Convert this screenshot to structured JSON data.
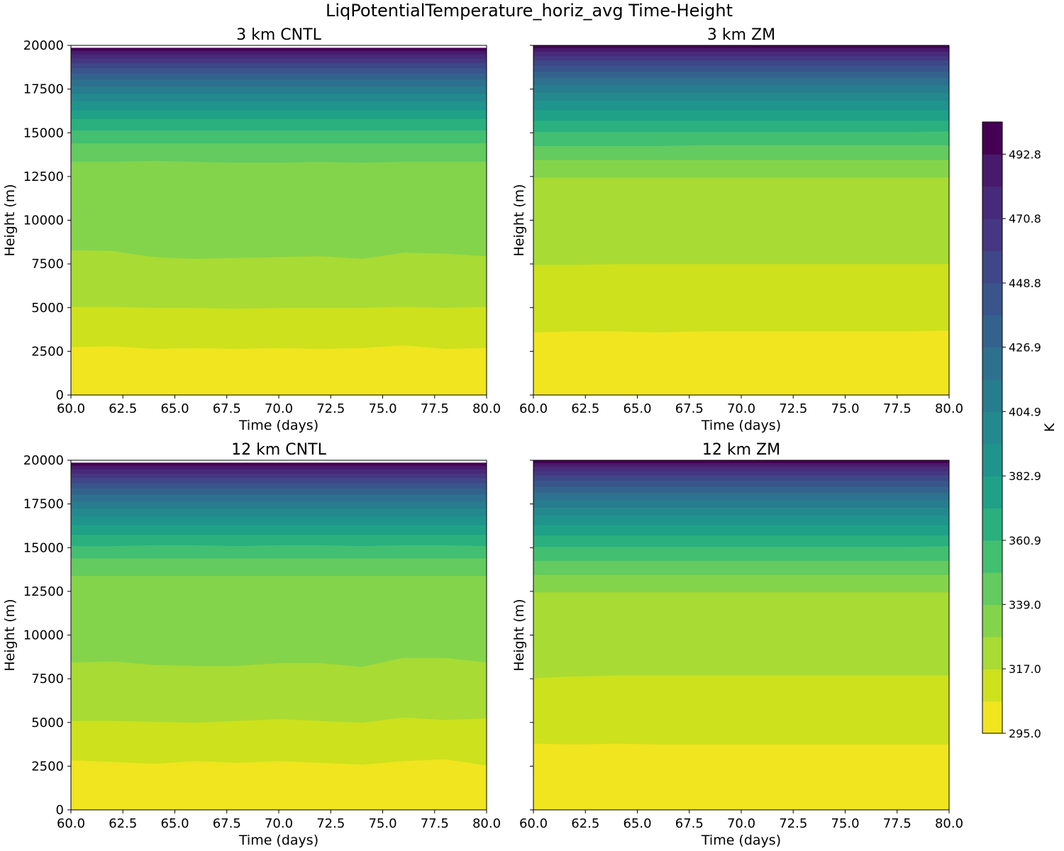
{
  "figure": {
    "title": "LiqPotentialTemperature_horiz_avg Time-Height"
  },
  "colorbar": {
    "label": "K",
    "range": [
      295.0,
      503.8
    ],
    "levels": 19,
    "tick_values": [
      295.0,
      317.0,
      339.0,
      360.9,
      382.9,
      404.9,
      426.9,
      448.8,
      470.8,
      492.8
    ],
    "tick_labels": [
      "295.0",
      "317.0",
      "339.0",
      "360.9",
      "382.9",
      "404.9",
      "426.9",
      "448.8",
      "470.8",
      "492.8"
    ],
    "colors": [
      "#f0e51f",
      "#cde11d",
      "#a8db34",
      "#84d44b",
      "#63cb5f",
      "#43bf71",
      "#2ab07f",
      "#1fa187",
      "#1f948c",
      "#23898e",
      "#277c8e",
      "#2d718e",
      "#33638d",
      "#39558c",
      "#3f4788",
      "#453781",
      "#472a7a",
      "#481a6c",
      "#440154"
    ]
  },
  "chart_data": [
    {
      "type": "heatmap",
      "title": "3 km CNTL",
      "xlabel": "Time (days)",
      "ylabel": "Height (m)",
      "xlim": [
        60,
        80
      ],
      "ylim": [
        0,
        20000
      ],
      "x_ticks": [
        "60.0",
        "62.5",
        "65.0",
        "67.5",
        "70.0",
        "72.5",
        "75.0",
        "77.5",
        "80.0"
      ],
      "y_ticks": [
        "0",
        "2500",
        "5000",
        "7500",
        "10000",
        "12500",
        "15000",
        "17500",
        "20000"
      ],
      "show_ytick_labels": true,
      "data_top_height": 19850,
      "band_x_days": [
        60,
        62,
        64,
        66,
        68,
        70,
        72,
        74,
        76,
        78,
        80
      ],
      "band_boundaries": [
        [
          2750,
          2800,
          2650,
          2700,
          2650,
          2700,
          2650,
          2700,
          2850,
          2650,
          2700
        ],
        [
          5050,
          5050,
          5000,
          5000,
          4950,
          5000,
          5000,
          5000,
          5050,
          5000,
          5050
        ],
        [
          8300,
          8250,
          7900,
          7800,
          7850,
          7900,
          7950,
          7800,
          8150,
          8100,
          7950
        ],
        [
          13350,
          13350,
          13400,
          13350,
          13300,
          13300,
          13350,
          13300,
          13350,
          13350,
          13350
        ],
        [
          14400,
          14400,
          14400,
          14400,
          14400,
          14400,
          14400,
          14400,
          14400,
          14400,
          14400
        ],
        [
          15150,
          15150,
          15150,
          15150,
          15150,
          15150,
          15150,
          15150,
          15150,
          15150,
          15150
        ],
        [
          15800,
          15800,
          15800,
          15800,
          15800,
          15800,
          15800,
          15800,
          15800,
          15800,
          15800
        ],
        [
          16300,
          16300,
          16300,
          16300,
          16300,
          16300,
          16300,
          16300,
          16300,
          16300,
          16300
        ],
        [
          16800,
          16800,
          16800,
          16800,
          16800,
          16800,
          16800,
          16800,
          16800,
          16800,
          16800
        ],
        [
          17250,
          17250,
          17250,
          17250,
          17250,
          17250,
          17250,
          17250,
          17250,
          17250,
          17250
        ],
        [
          17650,
          17650,
          17650,
          17650,
          17650,
          17650,
          17650,
          17650,
          17650,
          17650,
          17650
        ],
        [
          18050,
          18050,
          18050,
          18050,
          18050,
          18050,
          18050,
          18050,
          18050,
          18050,
          18050
        ],
        [
          18400,
          18400,
          18400,
          18400,
          18400,
          18400,
          18400,
          18400,
          18400,
          18400,
          18400
        ],
        [
          18700,
          18700,
          18700,
          18700,
          18700,
          18700,
          18700,
          18700,
          18700,
          18700,
          18700
        ],
        [
          19000,
          19000,
          19000,
          19000,
          19000,
          19000,
          19000,
          19000,
          19000,
          19000,
          19000
        ],
        [
          19250,
          19250,
          19250,
          19250,
          19250,
          19250,
          19250,
          19250,
          19250,
          19250,
          19250
        ],
        [
          19500,
          19500,
          19500,
          19500,
          19500,
          19500,
          19500,
          19500,
          19500,
          19500,
          19500
        ],
        [
          19700,
          19700,
          19700,
          19700,
          19700,
          19700,
          19700,
          19700,
          19700,
          19700,
          19700
        ]
      ]
    },
    {
      "type": "heatmap",
      "title": "3 km ZM",
      "xlabel": "Time (days)",
      "ylabel": "Height (m)",
      "xlim": [
        60,
        80
      ],
      "ylim": [
        0,
        20000
      ],
      "x_ticks": [
        "60.0",
        "62.5",
        "65.0",
        "67.5",
        "70.0",
        "72.5",
        "75.0",
        "77.5",
        "80.0"
      ],
      "y_ticks": [
        "0",
        "2500",
        "5000",
        "7500",
        "10000",
        "12500",
        "15000",
        "17500",
        "20000"
      ],
      "show_ytick_labels": false,
      "data_top_height": 20000,
      "band_x_days": [
        60,
        62,
        64,
        66,
        68,
        70,
        72,
        74,
        76,
        78,
        80
      ],
      "band_boundaries": [
        [
          3600,
          3650,
          3650,
          3600,
          3650,
          3650,
          3650,
          3650,
          3650,
          3650,
          3700
        ],
        [
          7450,
          7450,
          7500,
          7500,
          7500,
          7500,
          7500,
          7500,
          7500,
          7500,
          7500
        ],
        [
          12450,
          12450,
          12450,
          12450,
          12450,
          12450,
          12450,
          12450,
          12450,
          12450,
          12450
        ],
        [
          13450,
          13450,
          13450,
          13450,
          13450,
          13450,
          13450,
          13450,
          13450,
          13450,
          13450
        ],
        [
          14250,
          14250,
          14250,
          14250,
          14300,
          14300,
          14300,
          14300,
          14300,
          14300,
          14300
        ],
        [
          15050,
          15050,
          15050,
          15050,
          15050,
          15050,
          15050,
          15050,
          15050,
          15050,
          15100
        ],
        [
          15700,
          15700,
          15700,
          15700,
          15700,
          15700,
          15700,
          15700,
          15700,
          15700,
          15700
        ],
        [
          16300,
          16300,
          16300,
          16300,
          16300,
          16300,
          16300,
          16300,
          16300,
          16300,
          16300
        ],
        [
          16850,
          16850,
          16850,
          16850,
          16850,
          16850,
          16850,
          16850,
          16850,
          16850,
          16850
        ],
        [
          17300,
          17300,
          17300,
          17300,
          17300,
          17300,
          17300,
          17300,
          17300,
          17300,
          17300
        ],
        [
          17750,
          17750,
          17750,
          17750,
          17750,
          17750,
          17750,
          17750,
          17750,
          17750,
          17750
        ],
        [
          18150,
          18150,
          18150,
          18150,
          18150,
          18150,
          18150,
          18150,
          18150,
          18150,
          18150
        ],
        [
          18500,
          18500,
          18500,
          18500,
          18500,
          18500,
          18500,
          18500,
          18500,
          18500,
          18500
        ],
        [
          18850,
          18850,
          18850,
          18850,
          18850,
          18850,
          18850,
          18850,
          18850,
          18850,
          18850
        ],
        [
          19150,
          19150,
          19150,
          19150,
          19150,
          19150,
          19150,
          19150,
          19150,
          19150,
          19150
        ],
        [
          19400,
          19400,
          19400,
          19400,
          19400,
          19400,
          19400,
          19400,
          19400,
          19400,
          19400
        ],
        [
          19650,
          19650,
          19650,
          19650,
          19650,
          19650,
          19650,
          19650,
          19650,
          19650,
          19650
        ],
        [
          19850,
          19850,
          19850,
          19850,
          19850,
          19850,
          19850,
          19850,
          19850,
          19850,
          19850
        ]
      ]
    },
    {
      "type": "heatmap",
      "title": "12 km CNTL",
      "xlabel": "Time (days)",
      "ylabel": "Height (m)",
      "xlim": [
        60,
        80
      ],
      "ylim": [
        0,
        20000
      ],
      "x_ticks": [
        "60.0",
        "62.5",
        "65.0",
        "67.5",
        "70.0",
        "72.5",
        "75.0",
        "77.5",
        "80.0"
      ],
      "y_ticks": [
        "0",
        "2500",
        "5000",
        "7500",
        "10000",
        "12500",
        "15000",
        "17500",
        "20000"
      ],
      "show_ytick_labels": true,
      "data_top_height": 19850,
      "band_x_days": [
        60,
        62,
        64,
        66,
        68,
        70,
        72,
        74,
        76,
        78,
        80
      ],
      "band_boundaries": [
        [
          2850,
          2750,
          2650,
          2800,
          2700,
          2800,
          2700,
          2600,
          2800,
          2900,
          2550
        ],
        [
          5100,
          5100,
          5050,
          5000,
          5100,
          5200,
          5100,
          5000,
          5300,
          5150,
          5250
        ],
        [
          8450,
          8500,
          8300,
          8250,
          8250,
          8400,
          8400,
          8200,
          8700,
          8700,
          8450
        ],
        [
          13400,
          13400,
          13400,
          13400,
          13400,
          13400,
          13400,
          13400,
          13400,
          13400,
          13400
        ],
        [
          14400,
          14400,
          14400,
          14400,
          14400,
          14400,
          14400,
          14400,
          14400,
          14400,
          14400
        ],
        [
          15100,
          15100,
          15150,
          15150,
          15100,
          15150,
          15150,
          15100,
          15150,
          15150,
          15100
        ],
        [
          15750,
          15750,
          15750,
          15750,
          15750,
          15750,
          15750,
          15750,
          15750,
          15750,
          15750
        ],
        [
          16300,
          16300,
          16300,
          16300,
          16300,
          16300,
          16300,
          16300,
          16300,
          16300,
          16300
        ],
        [
          16800,
          16800,
          16800,
          16800,
          16800,
          16800,
          16800,
          16800,
          16800,
          16800,
          16800
        ],
        [
          17250,
          17250,
          17250,
          17250,
          17250,
          17250,
          17250,
          17250,
          17250,
          17250,
          17250
        ],
        [
          17650,
          17650,
          17650,
          17650,
          17650,
          17650,
          17650,
          17650,
          17650,
          17650,
          17650
        ],
        [
          18050,
          18050,
          18050,
          18050,
          18050,
          18050,
          18050,
          18050,
          18050,
          18050,
          18050
        ],
        [
          18400,
          18400,
          18400,
          18400,
          18400,
          18400,
          18400,
          18400,
          18400,
          18400,
          18400
        ],
        [
          18700,
          18700,
          18700,
          18700,
          18700,
          18700,
          18700,
          18700,
          18700,
          18700,
          18700
        ],
        [
          19000,
          19000,
          19000,
          19000,
          19000,
          19000,
          19000,
          19000,
          19000,
          19000,
          19000
        ],
        [
          19250,
          19250,
          19250,
          19250,
          19250,
          19250,
          19250,
          19250,
          19250,
          19250,
          19250
        ],
        [
          19500,
          19500,
          19500,
          19500,
          19500,
          19500,
          19500,
          19500,
          19500,
          19500,
          19500
        ],
        [
          19700,
          19700,
          19700,
          19700,
          19700,
          19700,
          19700,
          19700,
          19700,
          19700,
          19700
        ]
      ]
    },
    {
      "type": "heatmap",
      "title": "12 km ZM",
      "xlabel": "Time (days)",
      "ylabel": "Height (m)",
      "xlim": [
        60,
        80
      ],
      "ylim": [
        0,
        20000
      ],
      "x_ticks": [
        "60.0",
        "62.5",
        "65.0",
        "67.5",
        "70.0",
        "72.5",
        "75.0",
        "77.5",
        "80.0"
      ],
      "y_ticks": [
        "0",
        "2500",
        "5000",
        "7500",
        "10000",
        "12500",
        "15000",
        "17500",
        "20000"
      ],
      "show_ytick_labels": false,
      "data_top_height": 20000,
      "band_x_days": [
        60,
        62,
        64,
        66,
        68,
        70,
        72,
        74,
        76,
        78,
        80
      ],
      "band_boundaries": [
        [
          3800,
          3750,
          3800,
          3750,
          3750,
          3750,
          3750,
          3750,
          3750,
          3750,
          3750
        ],
        [
          7550,
          7650,
          7700,
          7700,
          7700,
          7700,
          7700,
          7700,
          7700,
          7700,
          7700
        ],
        [
          12450,
          12450,
          12450,
          12450,
          12450,
          12450,
          12450,
          12450,
          12450,
          12450,
          12450
        ],
        [
          13450,
          13450,
          13450,
          13450,
          13450,
          13450,
          13450,
          13450,
          13450,
          13450,
          13450
        ],
        [
          14250,
          14250,
          14250,
          14250,
          14250,
          14250,
          14250,
          14250,
          14250,
          14250,
          14250
        ],
        [
          15050,
          15050,
          15050,
          15050,
          15050,
          15050,
          15050,
          15050,
          15050,
          15050,
          15100
        ],
        [
          15700,
          15700,
          15700,
          15700,
          15700,
          15700,
          15700,
          15700,
          15700,
          15700,
          15700
        ],
        [
          16300,
          16300,
          16300,
          16300,
          16300,
          16300,
          16300,
          16300,
          16300,
          16300,
          16300
        ],
        [
          16850,
          16850,
          16850,
          16850,
          16850,
          16850,
          16850,
          16850,
          16850,
          16850,
          16850
        ],
        [
          17300,
          17300,
          17300,
          17300,
          17300,
          17300,
          17300,
          17300,
          17300,
          17300,
          17300
        ],
        [
          17750,
          17750,
          17750,
          17750,
          17750,
          17750,
          17750,
          17750,
          17750,
          17750,
          17750
        ],
        [
          18150,
          18150,
          18150,
          18150,
          18150,
          18150,
          18150,
          18150,
          18150,
          18150,
          18150
        ],
        [
          18500,
          18500,
          18500,
          18500,
          18500,
          18500,
          18500,
          18500,
          18500,
          18500,
          18500
        ],
        [
          18850,
          18850,
          18850,
          18850,
          18850,
          18850,
          18850,
          18850,
          18850,
          18850,
          18850
        ],
        [
          19150,
          19150,
          19150,
          19150,
          19150,
          19150,
          19150,
          19150,
          19150,
          19150,
          19150
        ],
        [
          19400,
          19400,
          19400,
          19400,
          19400,
          19400,
          19400,
          19400,
          19400,
          19400,
          19400
        ],
        [
          19650,
          19650,
          19650,
          19650,
          19650,
          19650,
          19650,
          19650,
          19650,
          19650,
          19650
        ],
        [
          19850,
          19850,
          19850,
          19850,
          19850,
          19850,
          19850,
          19850,
          19850,
          19850,
          19850
        ]
      ]
    }
  ]
}
